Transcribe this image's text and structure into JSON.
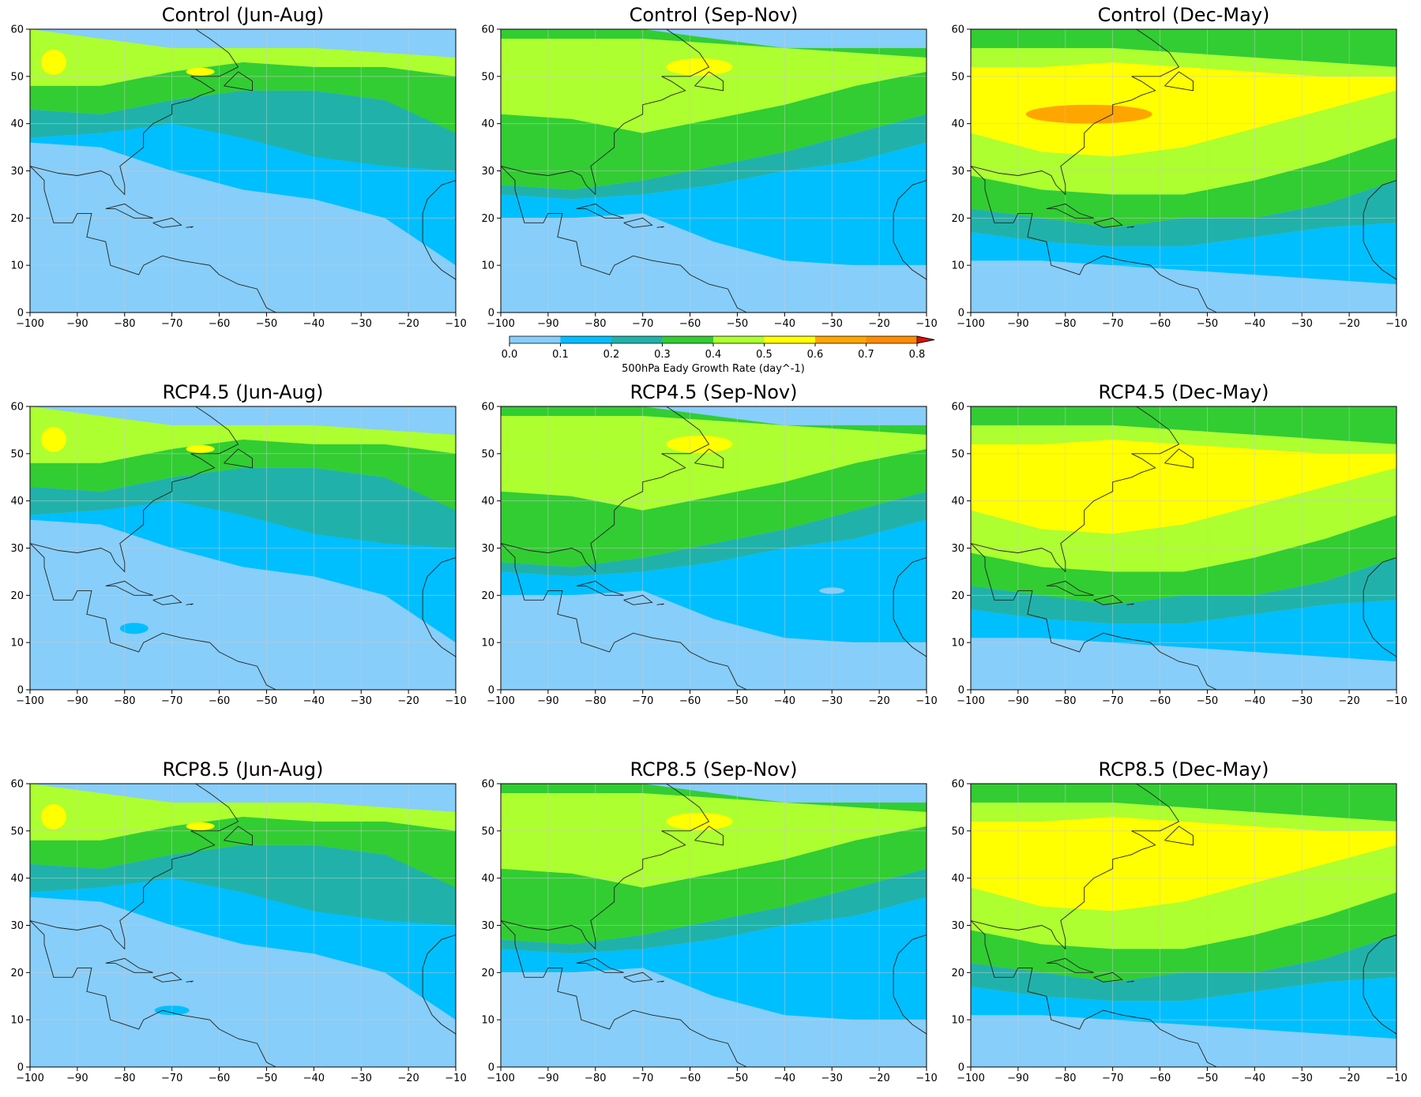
{
  "chart_data": {
    "type": "contour-map",
    "variable_label": "500hPa Eady Growth Rate (day^-1)",
    "colorbar": {
      "levels": [
        0.0,
        0.1,
        0.2,
        0.3,
        0.4,
        0.5,
        0.6,
        0.7,
        0.8
      ],
      "tick_labels": [
        "0.0",
        "0.1",
        "0.2",
        "0.3",
        "0.4",
        "0.5",
        "0.6",
        "0.7",
        "0.8"
      ],
      "colors": [
        "#87CEFA",
        "#00BFFF",
        "#20B2AA",
        "#32CD32",
        "#ADFF2F",
        "#FFFF00",
        "#FFA500",
        "#FF8C00"
      ],
      "extend": "max",
      "extend_color": "#DD1100"
    },
    "x_ticks": [
      -100,
      -90,
      -80,
      -70,
      -60,
      -50,
      -40,
      -30,
      -20,
      -10
    ],
    "y_ticks": [
      0,
      10,
      20,
      30,
      40,
      50,
      60
    ],
    "x_range": [
      -100,
      -10
    ],
    "y_range": [
      0,
      60
    ],
    "grid": true,
    "panels": [
      {
        "title": "Control (Jun-Aug)",
        "scenario": "Control",
        "season": "Jun-Aug"
      },
      {
        "title": "Control (Sep-Nov)",
        "scenario": "Control",
        "season": "Sep-Nov"
      },
      {
        "title": "Control (Dec-May)",
        "scenario": "Control",
        "season": "Dec-May"
      },
      {
        "title": "RCP4.5 (Jun-Aug)",
        "scenario": "RCP4.5",
        "season": "Jun-Aug"
      },
      {
        "title": "RCP4.5 (Sep-Nov)",
        "scenario": "RCP4.5",
        "season": "Sep-Nov"
      },
      {
        "title": "RCP4.5 (Dec-May)",
        "scenario": "RCP4.5",
        "season": "Dec-May"
      },
      {
        "title": "RCP8.5 (Jun-Aug)",
        "scenario": "RCP8.5",
        "season": "Jun-Aug"
      },
      {
        "title": "RCP8.5 (Sep-Nov)",
        "scenario": "RCP8.5",
        "season": "Sep-Nov"
      },
      {
        "title": "RCP8.5 (Dec-May)",
        "scenario": "RCP8.5",
        "season": "Dec-May"
      }
    ]
  }
}
